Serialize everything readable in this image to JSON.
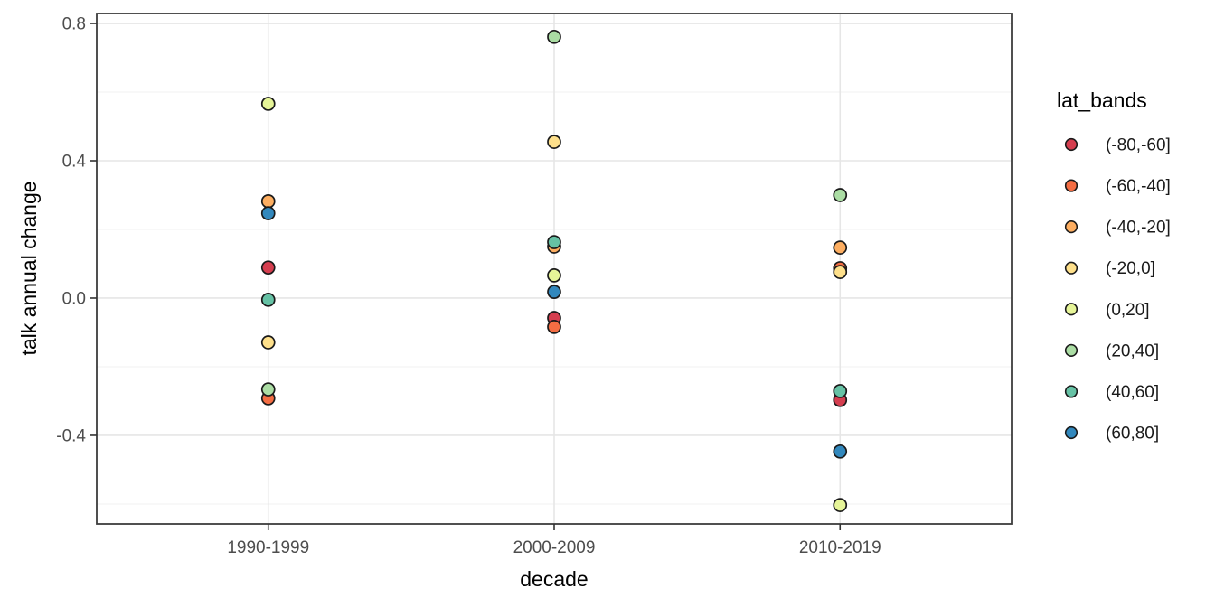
{
  "chart_data": {
    "type": "scatter",
    "title": "",
    "xlabel": "decade",
    "ylabel": "talk annual change",
    "x_categories": [
      "1990-1999",
      "2000-2009",
      "2010-2019"
    ],
    "y_ticks": [
      0.8,
      0.4,
      0.0,
      -0.4
    ],
    "y_tick_labels": [
      "0.8",
      "0.4",
      "0.0",
      "-0.4"
    ],
    "y_minor_gridlines": [
      0.6,
      0.2,
      -0.2,
      -0.6
    ],
    "ylim": [
      -0.658,
      0.829
    ],
    "grid": true,
    "legend": {
      "title": "lat_bands",
      "position": "right"
    },
    "point_outline_color": "#1a1a1a",
    "series": [
      {
        "name": "(-80,-60]",
        "color": "#d53e4f",
        "values": [
          0.089,
          -0.058,
          -0.297
        ]
      },
      {
        "name": "(-60,-40]",
        "color": "#f46d43",
        "values": [
          -0.292,
          -0.084,
          0.087
        ]
      },
      {
        "name": "(-40,-20]",
        "color": "#fdae61",
        "values": [
          0.282,
          0.15,
          0.147
        ]
      },
      {
        "name": "(-20,0]",
        "color": "#fee08b",
        "values": [
          -0.129,
          0.455,
          0.076
        ]
      },
      {
        "name": "(0,20]",
        "color": "#e6f598",
        "values": [
          0.566,
          0.066,
          -0.603
        ]
      },
      {
        "name": "(20,40]",
        "color": "#abdda4",
        "values": [
          -0.266,
          0.761,
          0.3
        ]
      },
      {
        "name": "(40,60]",
        "color": "#66c2a5",
        "values": [
          -0.005,
          0.163,
          -0.271
        ]
      },
      {
        "name": "(60,80]",
        "color": "#3288bd",
        "values": [
          0.247,
          0.018,
          -0.447
        ]
      }
    ]
  }
}
